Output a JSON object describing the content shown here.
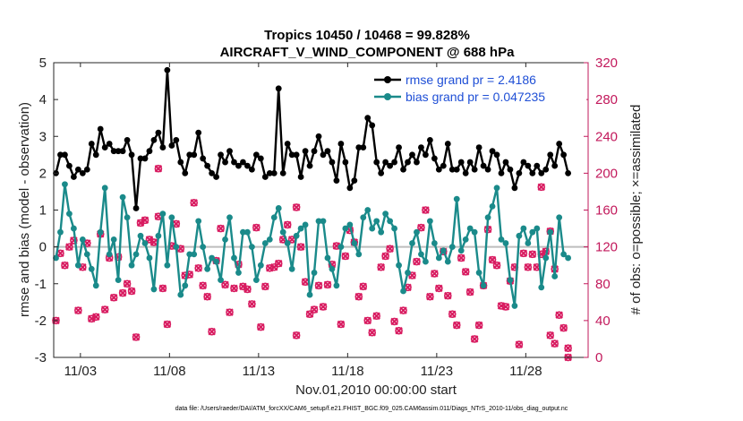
{
  "chart_data": {
    "type": "line",
    "title_line1": "Tropics 10450 / 10468 = 99.828%",
    "title_line2": "AIRCRAFT_V_WIND_COMPONENT @ 688 hPa",
    "xlabel": "Nov.01,2010 00:00:00 start",
    "ylabel_left": "rmse and bias (model - observation)",
    "ylabel_right": "# of obs: o=possible; ×=assimilated",
    "xlim": [
      1.5,
      31.5
    ],
    "ylim_left": [
      -3,
      5
    ],
    "ylim_right": [
      0,
      320
    ],
    "x_ticks": [
      3,
      8,
      13,
      18,
      23,
      28
    ],
    "x_tick_labels": [
      "11/03",
      "11/08",
      "11/13",
      "11/18",
      "11/23",
      "11/28"
    ],
    "y_ticks_left": [
      -3,
      -2,
      -1,
      0,
      1,
      2,
      3,
      4,
      5
    ],
    "y_ticks_right": [
      0,
      40,
      80,
      120,
      160,
      200,
      240,
      280,
      320
    ],
    "zero_line": 0,
    "legend": {
      "position": "top-right",
      "entries": [
        "rmse grand pr = 2.4186",
        "bias grand pr = 0.047235"
      ]
    },
    "colors": {
      "rmse": "#000000",
      "bias": "#1a8a8a",
      "obs": "#d81b60",
      "right_axis": "#c2185b",
      "zero_line": "#bdbdbd",
      "legend_text": "#1f4fd6"
    },
    "series": [
      {
        "name": "rmse",
        "x": [
          1.625,
          1.875,
          2.125,
          2.375,
          2.625,
          2.875,
          3.125,
          3.375,
          3.625,
          3.875,
          4.125,
          4.375,
          4.625,
          4.875,
          5.125,
          5.375,
          5.625,
          5.875,
          6.125,
          6.375,
          6.625,
          6.875,
          7.125,
          7.375,
          7.625,
          7.875,
          8.125,
          8.375,
          8.625,
          8.875,
          9.125,
          9.375,
          9.625,
          9.875,
          10.125,
          10.375,
          10.625,
          10.875,
          11.125,
          11.375,
          11.625,
          11.875,
          12.125,
          12.375,
          12.625,
          12.875,
          13.125,
          13.375,
          13.625,
          13.875,
          14.125,
          14.375,
          14.625,
          14.875,
          15.125,
          15.375,
          15.625,
          15.875,
          16.125,
          16.375,
          16.625,
          16.875,
          17.125,
          17.375,
          17.625,
          17.875,
          18.125,
          18.375,
          18.625,
          18.875,
          19.125,
          19.375,
          19.625,
          19.875,
          20.125,
          20.375,
          20.625,
          20.875,
          21.125,
          21.375,
          21.625,
          21.875,
          22.125,
          22.375,
          22.625,
          22.875,
          23.125,
          23.375,
          23.625,
          23.875,
          24.125,
          24.375,
          24.625,
          24.875,
          25.125,
          25.375,
          25.625,
          25.875,
          26.125,
          26.375,
          26.625,
          26.875,
          27.125,
          27.375,
          27.625,
          27.875,
          28.125,
          28.375,
          28.625,
          28.875,
          29.125,
          29.375,
          29.625,
          29.875,
          30.125,
          30.375
        ],
        "values": [
          2.0,
          2.5,
          2.5,
          2.2,
          1.9,
          2.1,
          2.0,
          2.1,
          2.8,
          2.5,
          3.2,
          2.7,
          2.8,
          2.6,
          2.6,
          2.6,
          2.9,
          2.5,
          1.05,
          2.4,
          2.4,
          2.6,
          2.9,
          3.1,
          2.7,
          4.8,
          2.75,
          2.9,
          2.3,
          2.0,
          2.5,
          2.5,
          3.1,
          2.4,
          2.2,
          2.0,
          1.9,
          2.5,
          2.3,
          2.6,
          2.3,
          2.2,
          2.3,
          2.2,
          2.1,
          2.5,
          2.4,
          1.9,
          2.0,
          2.0,
          4.3,
          2.0,
          2.8,
          2.5,
          2.5,
          1.9,
          2.6,
          2.2,
          2.6,
          3.0,
          2.5,
          2.6,
          2.3,
          1.8,
          2.8,
          2.3,
          1.6,
          1.8,
          2.7,
          2.7,
          3.5,
          3.3,
          2.3,
          2.0,
          2.3,
          2.2,
          2.3,
          2.7,
          2.1,
          2.3,
          2.5,
          2.3,
          2.7,
          2.5,
          2.9,
          2.4,
          2.1,
          2.2,
          2.8,
          2.1,
          2.1,
          2.3,
          2.0,
          2.3,
          2.1,
          2.7,
          2.2,
          2.1,
          2.6,
          2.5,
          2.0,
          2.3,
          2.1,
          1.6,
          2.0,
          2.3,
          2.2,
          2.0,
          2.2,
          2.0,
          2.1,
          2.5,
          2.2,
          2.8,
          2.5,
          2.0
        ]
      },
      {
        "name": "bias",
        "x": [
          1.625,
          1.875,
          2.125,
          2.375,
          2.625,
          2.875,
          3.125,
          3.375,
          3.625,
          3.875,
          4.125,
          4.375,
          4.625,
          4.875,
          5.125,
          5.375,
          5.625,
          5.875,
          6.125,
          6.375,
          6.625,
          6.875,
          7.125,
          7.375,
          7.625,
          7.875,
          8.125,
          8.375,
          8.625,
          8.875,
          9.125,
          9.375,
          9.625,
          9.875,
          10.125,
          10.375,
          10.625,
          10.875,
          11.125,
          11.375,
          11.625,
          11.875,
          12.125,
          12.375,
          12.625,
          12.875,
          13.125,
          13.375,
          13.625,
          13.875,
          14.125,
          14.375,
          14.625,
          14.875,
          15.125,
          15.375,
          15.625,
          15.875,
          16.125,
          16.375,
          16.625,
          16.875,
          17.125,
          17.375,
          17.625,
          17.875,
          18.125,
          18.375,
          18.625,
          18.875,
          19.125,
          19.375,
          19.625,
          19.875,
          20.125,
          20.375,
          20.625,
          20.875,
          21.125,
          21.375,
          21.625,
          21.875,
          22.125,
          22.375,
          22.625,
          22.875,
          23.125,
          23.375,
          23.625,
          23.875,
          24.125,
          24.375,
          24.625,
          24.875,
          25.125,
          25.375,
          25.625,
          25.875,
          26.125,
          26.375,
          26.625,
          26.875,
          27.125,
          27.375,
          27.625,
          27.875,
          28.125,
          28.375,
          28.625,
          28.875,
          29.125,
          29.375,
          29.625,
          29.875,
          30.125,
          30.375
        ],
        "values": [
          -0.3,
          0.4,
          1.7,
          0.9,
          0.5,
          -0.5,
          0.2,
          -0.2,
          -0.6,
          -1.05,
          0.4,
          1.6,
          -0.2,
          0.2,
          -0.9,
          1.35,
          0.8,
          -0.5,
          -0.2,
          0.3,
          0.1,
          -0.3,
          -1.15,
          0.3,
          0.9,
          -0.5,
          0.8,
          0.0,
          -1.3,
          -1.05,
          -0.2,
          -0.2,
          0.7,
          0.0,
          -0.6,
          -0.3,
          -0.4,
          -0.9,
          0.2,
          0.8,
          -0.3,
          -0.7,
          0.4,
          0.4,
          0.0,
          -0.9,
          -0.5,
          0.1,
          0.2,
          0.8,
          1.05,
          0.4,
          0.1,
          -0.6,
          0.3,
          0.5,
          0.6,
          -1.3,
          -0.7,
          0.7,
          0.7,
          -0.3,
          -0.6,
          -1.05,
          0.0,
          0.5,
          0.6,
          0.1,
          -0.2,
          0.8,
          1.0,
          0.5,
          0.7,
          0.4,
          0.9,
          0.7,
          0.5,
          -0.5,
          -1.2,
          -0.7,
          0.1,
          0.4,
          -0.2,
          -0.4,
          0.7,
          0.1,
          -0.3,
          -0.1,
          -0.4,
          0.0,
          1.3,
          -0.1,
          0.2,
          0.5,
          0.4,
          -0.7,
          -1.05,
          0.8,
          1.1,
          1.6,
          0.2,
          0.1,
          -0.9,
          -1.6,
          0.3,
          0.5,
          0.1,
          0.4,
          0.5,
          -1.1,
          -0.3,
          0.4,
          -0.8,
          0.8,
          -0.2,
          -0.3
        ]
      },
      {
        "name": "obs assimilated",
        "axis": "right",
        "marker": "x",
        "x": [
          1.625,
          1.875,
          2.125,
          2.375,
          2.625,
          2.875,
          3.125,
          3.375,
          3.625,
          3.875,
          4.125,
          4.375,
          4.625,
          4.875,
          5.125,
          5.375,
          5.625,
          5.875,
          6.125,
          6.375,
          6.625,
          6.875,
          7.125,
          7.375,
          7.625,
          7.875,
          8.125,
          8.375,
          8.625,
          8.875,
          9.125,
          9.375,
          9.625,
          9.875,
          10.125,
          10.375,
          10.625,
          10.875,
          11.125,
          11.375,
          11.625,
          11.875,
          12.125,
          12.375,
          12.625,
          12.875,
          13.125,
          13.375,
          13.625,
          13.875,
          14.125,
          14.375,
          14.625,
          14.875,
          15.125,
          15.375,
          15.625,
          15.875,
          16.125,
          16.375,
          16.625,
          16.875,
          17.125,
          17.375,
          17.625,
          17.875,
          18.125,
          18.375,
          18.625,
          18.875,
          19.125,
          19.375,
          19.625,
          19.875,
          20.125,
          20.375,
          20.625,
          20.875,
          21.125,
          21.375,
          21.625,
          21.875,
          22.125,
          22.375,
          22.625,
          22.875,
          23.125,
          23.375,
          23.625,
          23.875,
          24.125,
          24.375,
          24.625,
          24.875,
          25.125,
          25.375,
          25.625,
          25.875,
          26.125,
          26.375,
          26.625,
          26.875,
          27.125,
          27.375,
          27.625,
          27.875,
          28.125,
          28.375,
          28.625,
          28.875,
          29.125,
          29.375,
          29.625,
          29.875,
          30.125,
          30.375
        ],
        "values": [
          40,
          113,
          100,
          120,
          127,
          51,
          98,
          124,
          42,
          44,
          134,
          52,
          108,
          65,
          109,
          70,
          80,
          72,
          22,
          146,
          149,
          128,
          125,
          153,
          75,
          36,
          121,
          145,
          118,
          89,
          90,
          168,
          97,
          78,
          66,
          28,
          105,
          140,
          79,
          49,
          75,
          101,
          77,
          74,
          58,
          141,
          33,
          77,
          97,
          98,
          102,
          128,
          144,
          128,
          24,
          120,
          82,
          47,
          52,
          78,
          55,
          79,
          101,
          121,
          36,
          110,
          138,
          125,
          66,
          77,
          40,
          27,
          45,
          98,
          110,
          118,
          39,
          29,
          51,
          76,
          89,
          104,
          141,
          160,
          66,
          91,
          75,
          115,
          67,
          47,
          35,
          108,
          93,
          71,
          20,
          35,
          78,
          139,
          106,
          100,
          56,
          55,
          83,
          98,
          14,
          113,
          98,
          112,
          98,
          112,
          115,
          137,
          96,
          46,
          32,
          10
        ]
      },
      {
        "name": "obs possible",
        "axis": "right",
        "marker": "o",
        "x": [
          1.625,
          1.875,
          2.125,
          2.375,
          2.625,
          2.875,
          3.125,
          3.375,
          3.625,
          3.875,
          4.125,
          4.375,
          4.625,
          4.875,
          5.125,
          5.375,
          5.625,
          5.875,
          6.125,
          6.375,
          6.625,
          6.875,
          7.125,
          7.375,
          7.625,
          7.875,
          8.125,
          8.375,
          8.625,
          8.875,
          9.125,
          9.375,
          9.625,
          9.875,
          10.125,
          10.375,
          10.625,
          10.875,
          11.125,
          11.375,
          11.625,
          11.875,
          12.125,
          12.375,
          12.625,
          12.875,
          13.125,
          13.375,
          13.625,
          13.875,
          14.125,
          14.375,
          14.625,
          14.875,
          15.125,
          15.375,
          15.625,
          15.875,
          16.125,
          16.375,
          16.625,
          16.875,
          17.125,
          17.375,
          17.625,
          17.875,
          18.125,
          18.375,
          18.625,
          18.875,
          19.125,
          19.375,
          19.625,
          19.875,
          20.125,
          20.375,
          20.625,
          20.875,
          21.125,
          21.375,
          21.625,
          21.875,
          22.125,
          22.375,
          22.625,
          22.875,
          23.125,
          23.375,
          23.625,
          23.875,
          24.125,
          24.375,
          24.625,
          24.875,
          25.125,
          25.375,
          25.625,
          25.875,
          26.125,
          26.375,
          26.625,
          26.875,
          27.125,
          27.375,
          27.625,
          27.875,
          28.125,
          28.375,
          28.625,
          28.875,
          29.125,
          29.375,
          29.625,
          29.875,
          30.125,
          30.375
        ],
        "values": [
          40,
          113,
          100,
          120,
          127,
          51,
          98,
          124,
          42,
          44,
          134,
          52,
          108,
          65,
          109,
          70,
          80,
          72,
          22,
          146,
          149,
          128,
          125,
          153,
          75,
          36,
          121,
          145,
          118,
          89,
          90,
          168,
          97,
          78,
          66,
          28,
          105,
          140,
          79,
          49,
          75,
          101,
          77,
          74,
          58,
          141,
          33,
          77,
          97,
          98,
          102,
          128,
          144,
          128,
          24,
          120,
          82,
          47,
          52,
          78,
          55,
          79,
          101,
          121,
          36,
          110,
          138,
          125,
          66,
          77,
          40,
          27,
          45,
          98,
          110,
          118,
          39,
          29,
          51,
          76,
          89,
          104,
          141,
          160,
          66,
          91,
          75,
          115,
          67,
          47,
          35,
          108,
          93,
          71,
          20,
          35,
          78,
          139,
          106,
          100,
          56,
          55,
          83,
          98,
          14,
          113,
          98,
          112,
          98,
          112,
          115,
          137,
          96,
          46,
          32,
          10
        ]
      }
    ],
    "extra_obs_points": {
      "x": [
        7.375,
        15.125,
        28.875,
        29.375,
        29.625,
        30.375
      ],
      "values": [
        205,
        163,
        185,
        24,
        15,
        0
      ]
    },
    "footnote": "data file: /Users/raeder/DAI/ATM_forcXX/CAM6_setup/f.e21.FHIST_BGC.f09_025.CAM6assim.011/Diags_NTrS_2010-11/obs_diag_output.nc"
  }
}
